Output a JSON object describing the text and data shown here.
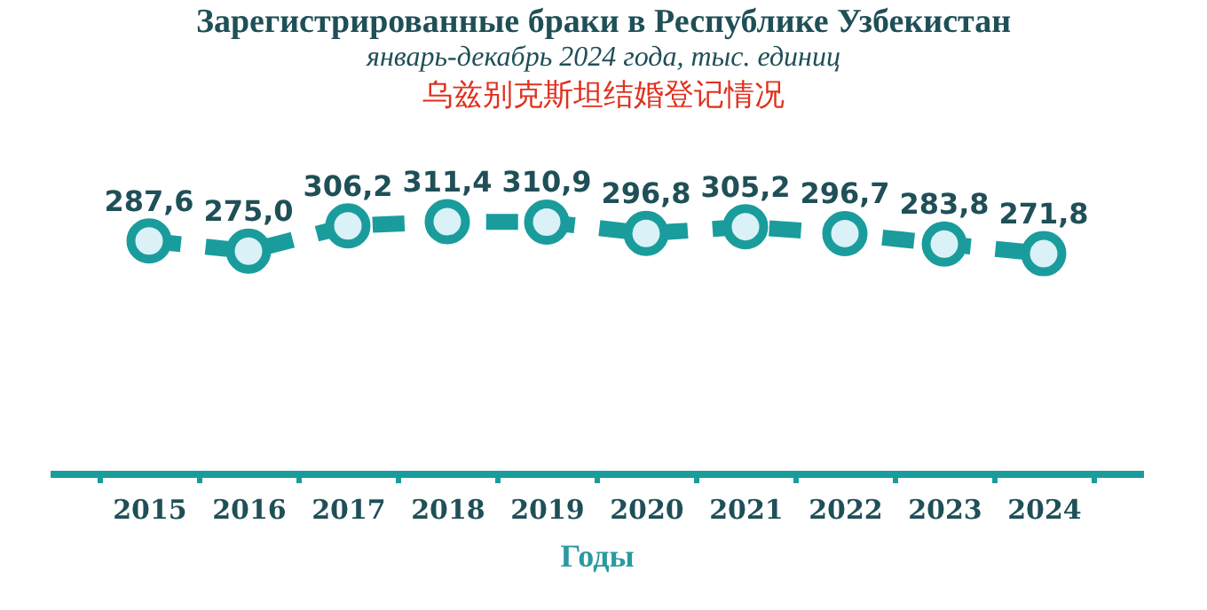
{
  "chart_data": {
    "type": "line",
    "title": "Зарегистрированные браки в Республике Узбекистан",
    "subtitle": "январь-декабрь 2024 года, тыс. единиц",
    "annotations": [
      "乌兹别克斯坦结婚登记情况"
    ],
    "xlabel": "Годы",
    "categories": [
      "2015",
      "2016",
      "2017",
      "2018",
      "2019",
      "2020",
      "2021",
      "2022",
      "2023",
      "2024"
    ],
    "series": [
      {
        "color": "#1a9c9c",
        "values": [
          287.6,
          275.0,
          306.2,
          311.4,
          310.9,
          296.8,
          305.2,
          296.7,
          283.8,
          271.8
        ],
        "value_labels": [
          "287,6",
          "275,0",
          "306,2",
          "311,4",
          "310,9",
          "296,8",
          "305,2",
          "296,7",
          "283,8",
          "271,8"
        ]
      }
    ],
    "tick_labels": "x",
    "marker": "circle",
    "line_style": "dashed"
  }
}
